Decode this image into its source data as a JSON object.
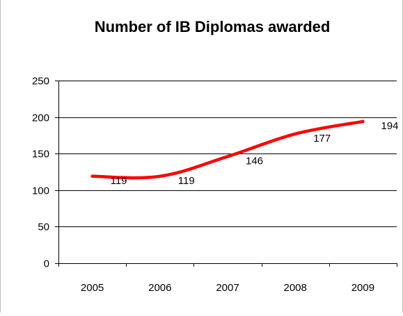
{
  "chart_data": {
    "type": "line",
    "title": "Number of IB Diplomas awarded",
    "xlabel": "",
    "ylabel": "",
    "categories": [
      "2005",
      "2006",
      "2007",
      "2008",
      "2009"
    ],
    "series": [
      {
        "values": [
          119,
          119,
          146,
          177,
          194
        ],
        "color": "#ff0000",
        "smooth": true
      }
    ],
    "ylim": [
      0,
      250
    ],
    "yticks": [
      "0",
      "50",
      "100",
      "150",
      "200",
      "250"
    ],
    "data_labels": [
      "119",
      "119",
      "146",
      "177",
      "194"
    ],
    "grid": "horizontal",
    "legend": "none"
  }
}
